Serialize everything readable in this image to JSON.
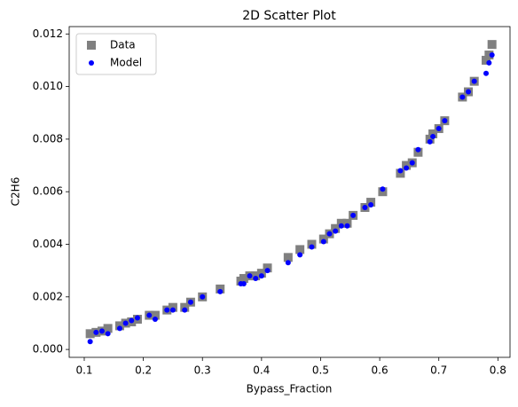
{
  "chart_data": {
    "type": "scatter",
    "title": "2D Scatter Plot",
    "x_label": "Bypass_Fraction",
    "y_label": "C2H6",
    "x": [
      0.11,
      0.12,
      0.13,
      0.14,
      0.16,
      0.17,
      0.18,
      0.19,
      0.21,
      0.22,
      0.24,
      0.25,
      0.27,
      0.28,
      0.3,
      0.33,
      0.365,
      0.37,
      0.38,
      0.39,
      0.4,
      0.41,
      0.445,
      0.465,
      0.485,
      0.505,
      0.515,
      0.525,
      0.535,
      0.545,
      0.555,
      0.575,
      0.585,
      0.605,
      0.635,
      0.645,
      0.655,
      0.665,
      0.685,
      0.69,
      0.7,
      0.71,
      0.74,
      0.75,
      0.76,
      0.78,
      0.785,
      0.79
    ],
    "series": [
      {
        "name": "Data",
        "color": "#808080",
        "marker": "square",
        "values": [
          0.0006,
          0.00065,
          0.0007,
          0.0008,
          0.0009,
          0.001,
          0.00105,
          0.00115,
          0.0013,
          0.0013,
          0.0015,
          0.0016,
          0.0016,
          0.0018,
          0.002,
          0.0023,
          0.0026,
          0.0027,
          0.0028,
          0.0028,
          0.0029,
          0.0031,
          0.0035,
          0.0038,
          0.004,
          0.0042,
          0.0044,
          0.0046,
          0.0048,
          0.0048,
          0.0051,
          0.0054,
          0.0056,
          0.006,
          0.0067,
          0.007,
          0.0071,
          0.0075,
          0.008,
          0.0082,
          0.0084,
          0.0087,
          0.0096,
          0.0098,
          0.0102,
          0.011,
          0.0112,
          0.0116
        ]
      },
      {
        "name": "Model",
        "color": "#0000ff",
        "marker": "circle",
        "values": [
          0.0003,
          0.00065,
          0.0007,
          0.0006,
          0.0008,
          0.001,
          0.0011,
          0.0012,
          0.0013,
          0.00115,
          0.0015,
          0.0015,
          0.0015,
          0.0018,
          0.002,
          0.0022,
          0.0025,
          0.0025,
          0.0028,
          0.0027,
          0.0028,
          0.003,
          0.0033,
          0.0036,
          0.0039,
          0.0041,
          0.0044,
          0.0045,
          0.0047,
          0.0047,
          0.0051,
          0.0054,
          0.0055,
          0.0061,
          0.0068,
          0.0069,
          0.0071,
          0.0076,
          0.0079,
          0.0081,
          0.0084,
          0.0087,
          0.0096,
          0.0098,
          0.0102,
          0.0105,
          0.0109,
          0.0112
        ]
      }
    ],
    "xlim": [
      0.0745,
      0.8205
    ],
    "ylim": [
      -0.0003,
      0.01228
    ],
    "xticks": [
      0.1,
      0.2,
      0.3,
      0.4,
      0.5,
      0.6,
      0.7,
      0.8
    ],
    "yticks": [
      {
        "value": 0,
        "label": "0.000"
      },
      0.002,
      0.004,
      0.006,
      0.008,
      {
        "value": 0.01,
        "label": "0.010"
      },
      0.012
    ],
    "legend": "upper left",
    "grid": false
  }
}
